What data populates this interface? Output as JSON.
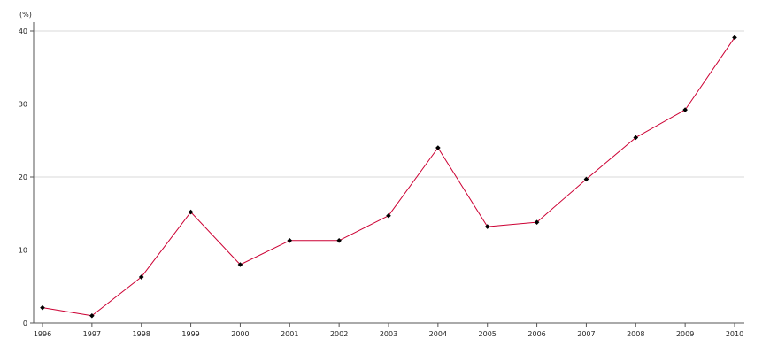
{
  "chart_data": {
    "type": "line",
    "ylabel": "(%)",
    "xlabel": "",
    "title": "",
    "categories": [
      "1996",
      "1997",
      "1998",
      "1999",
      "2000",
      "2001",
      "2002",
      "2003",
      "2004",
      "2005",
      "2006",
      "2007",
      "2008",
      "2009",
      "2010"
    ],
    "series": [
      {
        "values": [
          2.1,
          1.0,
          6.3,
          15.2,
          8.0,
          11.3,
          11.3,
          14.7,
          24.0,
          13.2,
          13.8,
          19.7,
          25.4,
          29.2,
          39.1
        ]
      }
    ],
    "ylim": [
      0,
      40
    ],
    "yticks": [
      0,
      10,
      20,
      30,
      40
    ],
    "grid": true,
    "legend": "none",
    "colors": {
      "line": "#cc0033",
      "marker": "#000000",
      "grid": "#d9d9d9",
      "axis": "#555555"
    }
  }
}
